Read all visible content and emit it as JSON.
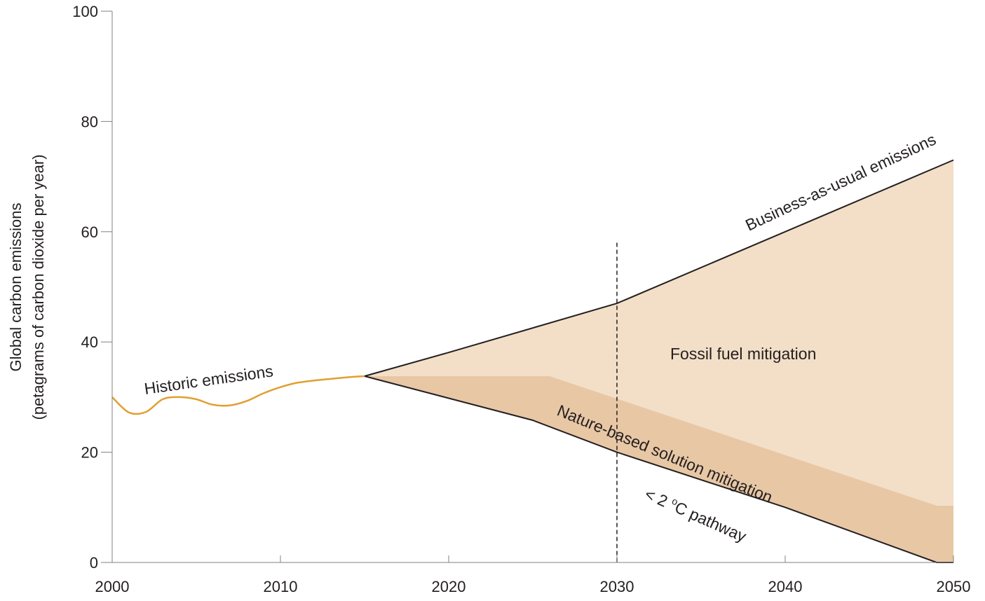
{
  "chart_data": {
    "type": "area",
    "xlabel": "",
    "ylabel": {
      "line1": "Global carbon emissions",
      "line2": "(petagrams of carbon dioxide per year)"
    },
    "xlim": [
      2000,
      2050
    ],
    "ylim": [
      0,
      100
    ],
    "x_ticks": [
      "2000",
      "2010",
      "2020",
      "2030",
      "2040",
      "2050"
    ],
    "y_ticks": [
      "0",
      "20",
      "40",
      "60",
      "80",
      "100"
    ],
    "grid": false,
    "series": [
      {
        "name": "Historic emissions",
        "kind": "line",
        "color": "#e0a030",
        "points": [
          [
            2000,
            30.0
          ],
          [
            2001,
            27.2
          ],
          [
            2002,
            27.3
          ],
          [
            2003,
            29.6
          ],
          [
            2004,
            30.0
          ],
          [
            2005,
            29.6
          ],
          [
            2006,
            28.6
          ],
          [
            2007,
            28.5
          ],
          [
            2008,
            29.3
          ],
          [
            2009,
            30.7
          ],
          [
            2010,
            31.8
          ],
          [
            2011,
            32.6
          ],
          [
            2012,
            33.0
          ],
          [
            2013,
            33.3
          ],
          [
            2014,
            33.6
          ],
          [
            2015,
            33.8
          ]
        ]
      },
      {
        "name": "Business-as-usual emissions",
        "kind": "line",
        "color": "#231f20",
        "points": [
          [
            2015,
            33.8
          ],
          [
            2020,
            38.1
          ],
          [
            2030,
            47.0
          ],
          [
            2040,
            60.0
          ],
          [
            2050,
            73.0
          ]
        ]
      },
      {
        "name": "< 2 °C pathway",
        "kind": "line",
        "color": "#231f20",
        "points": [
          [
            2015,
            33.8
          ],
          [
            2025,
            25.8
          ],
          [
            2030,
            20.0
          ],
          [
            2040,
            10.0
          ],
          [
            2049,
            0.0
          ],
          [
            2050,
            0.0
          ]
        ]
      },
      {
        "name": "Fossil fuel mitigation",
        "kind": "band",
        "color": "#f3dfc7",
        "upper": [
          [
            2015,
            33.8
          ],
          [
            2020,
            38.1
          ],
          [
            2030,
            47.0
          ],
          [
            2040,
            60.0
          ],
          [
            2050,
            73.0
          ]
        ],
        "lower": [
          [
            2015,
            33.8
          ],
          [
            2026,
            33.8
          ],
          [
            2049,
            10.3
          ],
          [
            2050,
            10.3
          ]
        ]
      },
      {
        "name": "Nature-based solution mitigation",
        "kind": "band",
        "color": "#e8c7a5",
        "upper": [
          [
            2015,
            33.8
          ],
          [
            2026,
            33.8
          ],
          [
            2049,
            10.3
          ],
          [
            2050,
            10.3
          ]
        ],
        "lower": [
          [
            2015,
            33.8
          ],
          [
            2025,
            25.8
          ],
          [
            2030,
            20.0
          ],
          [
            2040,
            10.0
          ],
          [
            2049,
            0.0
          ],
          [
            2050,
            0.0
          ]
        ]
      }
    ],
    "reference_line": {
      "x": 2030,
      "y_top": 58,
      "style": "dashed"
    },
    "annotations": {
      "historic": "Historic emissions",
      "bau": "Business-as-usual emissions",
      "fossil": "Fossil fuel mitigation",
      "nature": "Nature-based solution mitigation",
      "pathway_prefix": "< 2 ",
      "pathway_sup": "o",
      "pathway_suffix": "C pathway"
    },
    "colors": {
      "axis": "#231f20",
      "historic": "#e0a030",
      "fossil_band": "#f3dfc7",
      "nature_band": "#e8c7a5"
    }
  }
}
